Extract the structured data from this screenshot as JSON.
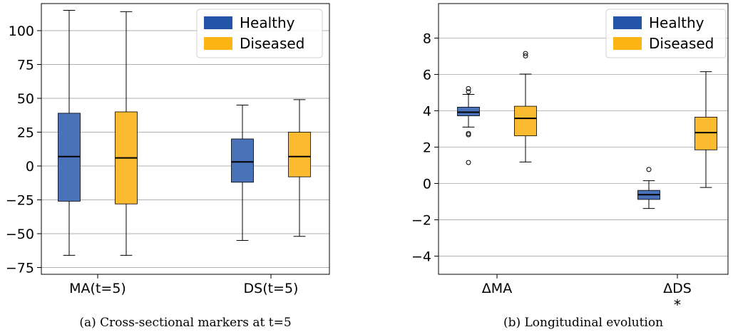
{
  "colors": {
    "healthy": "#4a72b8",
    "diseased": "#fbbb30",
    "healthy_legend": "#2255a8",
    "diseased_legend": "#fdb515",
    "grid": "#b0b0b0",
    "median": "#000000"
  },
  "chart_data": [
    {
      "type": "box",
      "caption": "(a) Cross-sectional markers at t=5",
      "categories": [
        "MA(t=5)",
        "DS(t=5)"
      ],
      "series": [
        {
          "name": "Healthy",
          "color_key": "healthy",
          "boxes": [
            {
              "whislo": -66,
              "q1": -26,
              "med": 7,
              "q3": 39,
              "whishi": 115,
              "fliers": []
            },
            {
              "whislo": -55,
              "q1": -12,
              "med": 3,
              "q3": 20,
              "whishi": 45,
              "fliers": []
            }
          ]
        },
        {
          "name": "Diseased",
          "color_key": "diseased",
          "boxes": [
            {
              "whislo": -66,
              "q1": -28,
              "med": 6,
              "q3": 40,
              "whishi": 114,
              "fliers": []
            },
            {
              "whislo": -52,
              "q1": -8,
              "med": 7,
              "q3": 25,
              "whishi": 49,
              "fliers": []
            }
          ]
        }
      ],
      "ylim": [
        -80,
        120
      ],
      "yticks": [
        -75,
        -50,
        -25,
        0,
        25,
        50,
        75,
        100
      ],
      "ytick_labels": [
        "−75",
        "−50",
        "−25",
        "0",
        "25",
        "50",
        "75",
        "100"
      ],
      "grid": "y",
      "legend": {
        "placement": "top-right",
        "entries": [
          "Healthy",
          "Diseased"
        ]
      },
      "annotations": [
        "",
        ""
      ]
    },
    {
      "type": "box",
      "caption": "(b) Longitudinal evolution",
      "categories": [
        "ΔMA",
        "ΔDS"
      ],
      "series": [
        {
          "name": "Healthy",
          "color_key": "healthy",
          "boxes": [
            {
              "whislo": 3.1,
              "q1": 3.72,
              "med": 3.92,
              "q3": 4.2,
              "whishi": 4.9,
              "fliers": [
                5.22,
                5.05,
                2.75,
                2.68,
                1.15
              ]
            },
            {
              "whislo": -1.38,
              "q1": -0.88,
              "med": -0.62,
              "q3": -0.38,
              "whishi": 0.15,
              "fliers": [
                0.77
              ]
            }
          ]
        },
        {
          "name": "Diseased",
          "color_key": "diseased",
          "boxes": [
            {
              "whislo": 1.18,
              "q1": 2.62,
              "med": 3.58,
              "q3": 4.25,
              "whishi": 6.02,
              "fliers": [
                7.15,
                7.02
              ]
            },
            {
              "whislo": -0.22,
              "q1": 1.85,
              "med": 2.8,
              "q3": 3.65,
              "whishi": 6.15,
              "fliers": []
            }
          ]
        }
      ],
      "ylim": [
        -5,
        9.9
      ],
      "yticks": [
        -4,
        -2,
        0,
        2,
        4,
        6,
        8
      ],
      "ytick_labels": [
        "−4",
        "−2",
        "0",
        "2",
        "4",
        "6",
        "8"
      ],
      "grid": "y",
      "legend": {
        "placement": "top-right",
        "entries": [
          "Healthy",
          "Diseased"
        ]
      },
      "annotations": [
        "",
        "*"
      ]
    }
  ]
}
